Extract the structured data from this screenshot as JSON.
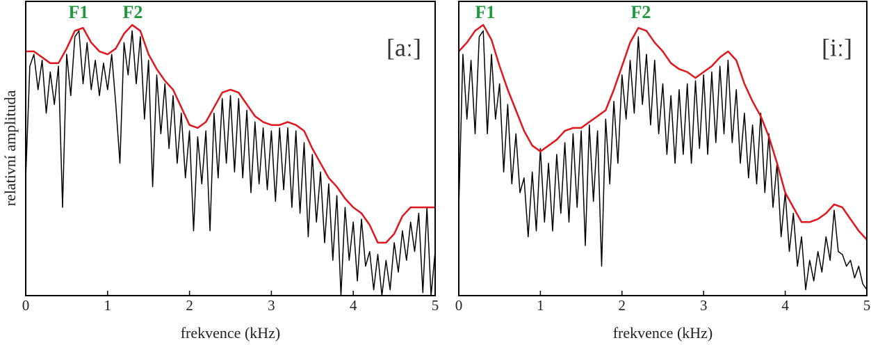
{
  "chart_data": [
    {
      "type": "line",
      "xlabel": "frekvence (kHz)",
      "ylabel": "relativní amplituda",
      "annotations": [
        "F1",
        "F2",
        "[aː]"
      ],
      "xlim": [
        0,
        5
      ],
      "xticks": [
        0,
        1,
        2,
        3,
        4,
        5
      ],
      "ylim": [
        0,
        100
      ],
      "series": [
        {
          "color": "#000000",
          "x": [
            0,
            0.05,
            0.1,
            0.15,
            0.2,
            0.25,
            0.3,
            0.35,
            0.4,
            0.45,
            0.5,
            0.55,
            0.6,
            0.65,
            0.7,
            0.75,
            0.8,
            0.85,
            0.9,
            0.95,
            1,
            1.05,
            1.1,
            1.15,
            1.2,
            1.25,
            1.3,
            1.35,
            1.4,
            1.45,
            1.5,
            1.55,
            1.6,
            1.65,
            1.7,
            1.75,
            1.8,
            1.85,
            1.9,
            1.95,
            2,
            2.05,
            2.1,
            2.15,
            2.2,
            2.25,
            2.3,
            2.35,
            2.4,
            2.45,
            2.5,
            2.55,
            2.6,
            2.65,
            2.7,
            2.75,
            2.8,
            2.85,
            2.9,
            2.95,
            3,
            3.05,
            3.1,
            3.15,
            3.2,
            3.25,
            3.3,
            3.35,
            3.4,
            3.45,
            3.5,
            3.55,
            3.6,
            3.65,
            3.7,
            3.75,
            3.8,
            3.85,
            3.9,
            3.95,
            4,
            4.05,
            4.1,
            4.15,
            4.2,
            4.25,
            4.3,
            4.35,
            4.4,
            4.45,
            4.5,
            4.55,
            4.6,
            4.65,
            4.7,
            4.75,
            4.8,
            4.85,
            4.9,
            4.95,
            5
          ],
          "values": [
            40,
            78,
            82,
            70,
            80,
            62,
            76,
            65,
            78,
            30,
            82,
            68,
            88,
            90,
            72,
            86,
            70,
            80,
            68,
            79,
            70,
            82,
            65,
            45,
            86,
            75,
            90,
            72,
            88,
            60,
            80,
            37,
            75,
            55,
            72,
            50,
            68,
            45,
            62,
            40,
            56,
            22,
            54,
            38,
            56,
            22,
            62,
            40,
            67,
            45,
            68,
            42,
            67,
            40,
            63,
            35,
            59,
            38,
            57,
            36,
            56,
            32,
            57,
            36,
            57,
            30,
            56,
            28,
            52,
            20,
            48,
            25,
            42,
            18,
            38,
            12,
            34,
            0,
            30,
            12,
            25,
            5,
            26,
            10,
            15,
            2,
            14,
            0,
            12,
            2,
            18,
            8,
            22,
            12,
            25,
            15,
            28,
            1,
            30,
            0,
            15
          ]
        },
        {
          "color": "#e0161c",
          "x": [
            0,
            0.1,
            0.2,
            0.3,
            0.4,
            0.5,
            0.6,
            0.7,
            0.8,
            0.9,
            1,
            1.1,
            1.2,
            1.3,
            1.4,
            1.5,
            1.6,
            1.7,
            1.8,
            1.9,
            2,
            2.1,
            2.2,
            2.3,
            2.4,
            2.5,
            2.6,
            2.7,
            2.8,
            2.9,
            3,
            3.1,
            3.2,
            3.3,
            3.4,
            3.5,
            3.6,
            3.7,
            3.8,
            3.9,
            4,
            4.1,
            4.2,
            4.3,
            4.4,
            4.5,
            4.6,
            4.7,
            4.8,
            4.9,
            5
          ],
          "values": [
            83,
            83,
            81,
            79,
            79,
            84,
            90,
            91,
            86,
            83,
            82,
            84,
            89,
            92,
            90,
            82,
            77,
            73,
            70,
            64,
            58,
            57,
            59,
            64,
            69,
            70,
            69,
            65,
            61,
            59,
            58,
            58,
            59,
            58,
            56,
            50,
            45,
            40,
            37,
            33,
            30,
            28,
            24,
            18,
            18,
            21,
            27,
            30,
            30,
            30,
            30
          ]
        }
      ]
    },
    {
      "type": "line",
      "xlabel": "frekvence (kHz)",
      "annotations": [
        "F1",
        "F2",
        "[iː]"
      ],
      "xlim": [
        0,
        5
      ],
      "xticks": [
        0,
        1,
        2,
        3,
        4,
        5
      ],
      "ylim": [
        0,
        100
      ],
      "series": [
        {
          "color": "#000000",
          "x": [
            0,
            0.05,
            0.1,
            0.15,
            0.2,
            0.25,
            0.3,
            0.35,
            0.4,
            0.45,
            0.5,
            0.55,
            0.6,
            0.65,
            0.7,
            0.75,
            0.8,
            0.85,
            0.9,
            0.95,
            1,
            1.05,
            1.1,
            1.15,
            1.2,
            1.25,
            1.3,
            1.35,
            1.4,
            1.45,
            1.5,
            1.55,
            1.6,
            1.65,
            1.7,
            1.75,
            1.8,
            1.85,
            1.9,
            1.95,
            2,
            2.05,
            2.1,
            2.15,
            2.2,
            2.25,
            2.3,
            2.35,
            2.4,
            2.45,
            2.5,
            2.55,
            2.6,
            2.65,
            2.7,
            2.75,
            2.8,
            2.85,
            2.9,
            2.95,
            3,
            3.05,
            3.1,
            3.15,
            3.2,
            3.25,
            3.3,
            3.35,
            3.4,
            3.45,
            3.5,
            3.55,
            3.6,
            3.65,
            3.7,
            3.75,
            3.8,
            3.85,
            3.9,
            3.95,
            4,
            4.05,
            4.1,
            4.15,
            4.2,
            4.25,
            4.3,
            4.35,
            4.4,
            4.45,
            4.5,
            4.55,
            4.6,
            4.65,
            4.7,
            4.75,
            4.8,
            4.85,
            4.9,
            4.95,
            5
          ],
          "values": [
            30,
            82,
            60,
            80,
            55,
            88,
            90,
            55,
            82,
            60,
            72,
            42,
            65,
            38,
            55,
            35,
            40,
            20,
            42,
            22,
            50,
            25,
            45,
            22,
            48,
            28,
            52,
            25,
            55,
            30,
            56,
            17,
            58,
            32,
            56,
            10,
            60,
            38,
            66,
            45,
            75,
            60,
            80,
            62,
            88,
            65,
            82,
            58,
            80,
            55,
            72,
            48,
            68,
            45,
            70,
            48,
            72,
            45,
            73,
            50,
            75,
            48,
            76,
            52,
            78,
            55,
            80,
            52,
            70,
            45,
            62,
            40,
            58,
            38,
            62,
            35,
            55,
            30,
            45,
            20,
            35,
            15,
            28,
            10,
            20,
            2,
            12,
            5,
            15,
            8,
            20,
            12,
            29,
            15,
            14,
            10,
            12,
            6,
            10,
            4,
            2
          ]
        },
        {
          "color": "#e0161c",
          "x": [
            0,
            0.1,
            0.2,
            0.3,
            0.4,
            0.5,
            0.6,
            0.7,
            0.8,
            0.9,
            1,
            1.1,
            1.2,
            1.3,
            1.4,
            1.5,
            1.6,
            1.7,
            1.8,
            1.9,
            2,
            2.1,
            2.2,
            2.3,
            2.4,
            2.5,
            2.6,
            2.7,
            2.8,
            2.9,
            3,
            3.1,
            3.2,
            3.3,
            3.4,
            3.5,
            3.6,
            3.7,
            3.8,
            3.9,
            4,
            4.1,
            4.2,
            4.3,
            4.4,
            4.5,
            4.6,
            4.7,
            4.8,
            4.9,
            5
          ],
          "values": [
            83,
            86,
            90,
            92,
            87,
            78,
            70,
            63,
            56,
            51,
            49,
            51,
            53,
            56,
            57,
            57,
            59,
            61,
            63,
            70,
            78,
            86,
            91,
            90,
            86,
            83,
            79,
            77,
            76,
            74,
            76,
            78,
            81,
            83,
            80,
            72,
            66,
            61,
            54,
            45,
            35,
            30,
            25,
            25,
            26,
            28,
            31,
            30,
            26,
            22,
            19
          ]
        }
      ]
    }
  ]
}
